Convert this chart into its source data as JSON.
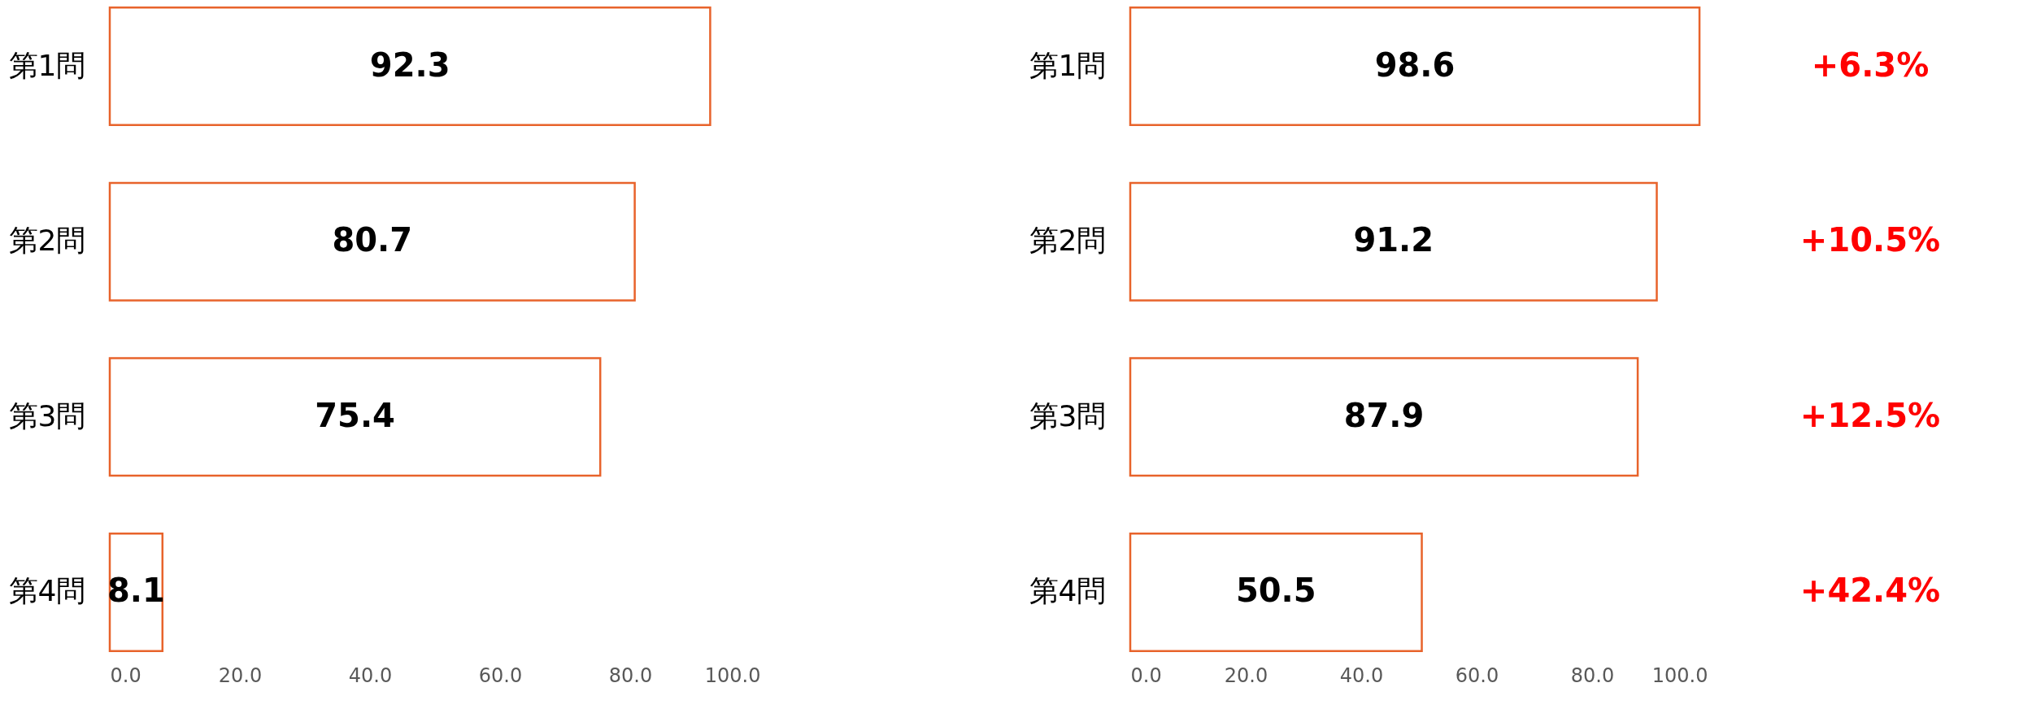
{
  "chart_data": [
    {
      "type": "bar",
      "orientation": "horizontal",
      "categories": [
        "第1問",
        "第2問",
        "第3問",
        "第4問"
      ],
      "values": [
        92.3,
        80.7,
        75.4,
        8.1
      ],
      "color": "#e8632b",
      "xlim": [
        0,
        100
      ],
      "xticks": [
        {
          "value": 0,
          "label": "0.0"
        },
        {
          "value": 20,
          "label": "20.0"
        },
        {
          "value": 40,
          "label": "40.0"
        },
        {
          "value": 60,
          "label": "60.0"
        },
        {
          "value": 80,
          "label": "80.0"
        },
        {
          "value": 100,
          "label": "100.0"
        }
      ],
      "data_labels": true,
      "grid": false
    },
    {
      "type": "bar",
      "orientation": "horizontal",
      "categories": [
        "第1問",
        "第2問",
        "第3問",
        "第4問"
      ],
      "values": [
        98.6,
        91.2,
        87.9,
        50.5
      ],
      "color": "#e8632b",
      "xlim": [
        0,
        100
      ],
      "xticks": [
        {
          "value": 0,
          "label": "0.0"
        },
        {
          "value": 20,
          "label": "20.0"
        },
        {
          "value": 40,
          "label": "40.0"
        },
        {
          "value": 60,
          "label": "60.0"
        },
        {
          "value": 80,
          "label": "80.0"
        },
        {
          "value": 100,
          "label": "100.0"
        }
      ],
      "data_labels": true,
      "grid": false,
      "annotations": [
        "+6.3%",
        "+10.5%",
        "+12.5%",
        "+42.4%"
      ]
    }
  ]
}
